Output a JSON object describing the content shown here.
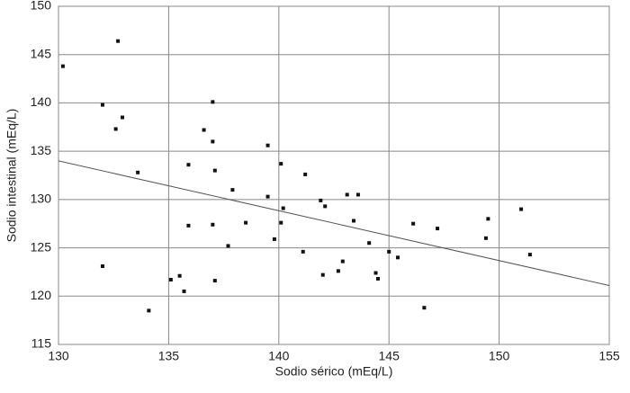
{
  "chart_data": {
    "type": "scatter",
    "xlabel": "Sodio sérico (mEq/L)",
    "ylabel": "Sodio intestinal (mEq/L)",
    "x": [
      130.2,
      132.7,
      132.0,
      132.6,
      132.9,
      133.6,
      132.0,
      134.1,
      135.1,
      135.5,
      135.7,
      135.9,
      135.9,
      136.6,
      137.0,
      137.0,
      137.1,
      137.0,
      137.1,
      137.7,
      137.9,
      138.5,
      139.5,
      139.5,
      139.8,
      140.1,
      140.2,
      140.1,
      141.1,
      141.2,
      141.9,
      142.1,
      142.0,
      142.7,
      142.9,
      143.1,
      143.6,
      143.4,
      144.1,
      144.4,
      144.5,
      145.0,
      145.4,
      146.1,
      146.6,
      147.2,
      149.5,
      149.4,
      151.0,
      151.4
    ],
    "values": [
      143.8,
      146.4,
      139.8,
      137.3,
      138.5,
      132.8,
      123.1,
      118.5,
      121.7,
      122.1,
      120.5,
      133.6,
      127.3,
      137.2,
      140.1,
      136.0,
      133.0,
      127.4,
      121.6,
      125.2,
      131.0,
      127.6,
      135.6,
      130.3,
      125.9,
      133.7,
      129.1,
      127.6,
      124.6,
      132.6,
      129.9,
      129.3,
      122.2,
      122.6,
      123.6,
      130.5,
      130.5,
      127.8,
      125.5,
      122.4,
      121.8,
      124.6,
      124.0,
      127.5,
      118.8,
      127.0,
      128.0,
      126.0,
      129.0,
      124.3
    ],
    "color": "#111111",
    "trendline": {
      "x": [
        130,
        155
      ],
      "y": [
        134.0,
        121.1
      ],
      "color": "#555555"
    },
    "xlim": [
      130,
      155
    ],
    "xticks": [
      130,
      135,
      140,
      145,
      150,
      155
    ],
    "ylim": [
      115,
      150
    ],
    "yticks": [
      115,
      120,
      125,
      130,
      135,
      140,
      145,
      150
    ],
    "grid": true
  }
}
